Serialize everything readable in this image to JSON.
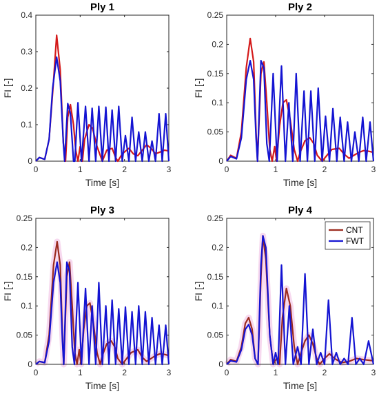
{
  "colors": {
    "CNT": "#c81414",
    "FWT": "#1414d2",
    "axis": "#262626",
    "highlight": "#f7d9ef"
  },
  "chart_data": [
    {
      "type": "line",
      "title": "Ply 1",
      "xlabel": "Time [s]",
      "ylabel": "FI [-]",
      "xlim": [
        0,
        3
      ],
      "ylim": [
        0,
        0.4
      ],
      "xticks": [
        "0",
        "1",
        "2",
        "3"
      ],
      "yticks": [
        "0",
        "0.1",
        "0.2",
        "0.3",
        "0.4"
      ],
      "highlight": false,
      "series": [
        {
          "name": "CNT",
          "color": "#d41a1a",
          "x": [
            0,
            0.08,
            0.2,
            0.3,
            0.4,
            0.47,
            0.55,
            0.62,
            0.67,
            0.72,
            0.78,
            0.85,
            0.9,
            0.95,
            1.0,
            1.05,
            1.1,
            1.15,
            1.2,
            1.28,
            1.38,
            1.5,
            1.6,
            1.72,
            1.8,
            1.85,
            1.95,
            2.1,
            2.2,
            2.3,
            2.4,
            2.5,
            2.6,
            2.7,
            2.8,
            2.9,
            3.0
          ],
          "y": [
            0,
            0.01,
            0.005,
            0.06,
            0.22,
            0.345,
            0.25,
            0.05,
            0.0,
            0.12,
            0.155,
            0.1,
            0.03,
            0.0,
            0.04,
            0.0,
            0.06,
            0.08,
            0.1,
            0.09,
            0.04,
            0.0,
            0.03,
            0.035,
            0.01,
            0.0,
            0.02,
            0.035,
            0.02,
            0.015,
            0.03,
            0.045,
            0.035,
            0.02,
            0.025,
            0.03,
            0.028
          ]
        },
        {
          "name": "FWT",
          "color": "#1414d2",
          "x": [
            0,
            0.08,
            0.2,
            0.3,
            0.38,
            0.47,
            0.55,
            0.62,
            0.65,
            0.72,
            0.78,
            0.85,
            0.88,
            0.95,
            1.03,
            1.12,
            1.2,
            1.27,
            1.35,
            1.42,
            1.5,
            1.58,
            1.65,
            1.72,
            1.8,
            1.87,
            1.95,
            2.02,
            2.1,
            2.17,
            2.25,
            2.32,
            2.4,
            2.47,
            2.55,
            2.62,
            2.7,
            2.78,
            2.85,
            2.93,
            3.0
          ],
          "y": [
            0,
            0.01,
            0.005,
            0.06,
            0.2,
            0.285,
            0.22,
            0.05,
            0.0,
            0.158,
            0.13,
            0.0,
            0.0,
            0.16,
            0.0,
            0.15,
            0.0,
            0.145,
            0.0,
            0.15,
            0.0,
            0.148,
            0.0,
            0.14,
            0.0,
            0.15,
            0.0,
            0.07,
            0.0,
            0.12,
            0.0,
            0.08,
            0.0,
            0.08,
            0.0,
            0.055,
            0.0,
            0.13,
            0.0,
            0.13,
            0.0
          ]
        }
      ]
    },
    {
      "type": "line",
      "title": "Ply 2",
      "xlabel": "Time [s]",
      "ylabel": "FI [-]",
      "xlim": [
        0,
        3
      ],
      "ylim": [
        0,
        0.25
      ],
      "xticks": [
        "0",
        "1",
        "2",
        "3"
      ],
      "yticks": [
        "0",
        "0.05",
        "0.1",
        "0.15",
        "0.2",
        "0.25"
      ],
      "highlight": false,
      "series": [
        {
          "name": "CNT",
          "color": "#d41a1a",
          "x": [
            0,
            0.08,
            0.2,
            0.3,
            0.4,
            0.48,
            0.55,
            0.6,
            0.63,
            0.7,
            0.76,
            0.82,
            0.88,
            0.93,
            0.98,
            1.02,
            1.08,
            1.15,
            1.22,
            1.3,
            1.38,
            1.45,
            1.5,
            1.6,
            1.7,
            1.78,
            1.85,
            1.95,
            2.05,
            2.15,
            2.3,
            2.4,
            2.5,
            2.6,
            2.7,
            2.8,
            2.9,
            3.0
          ],
          "y": [
            0.0,
            0.01,
            0.005,
            0.05,
            0.16,
            0.21,
            0.17,
            0.05,
            0.0,
            0.15,
            0.17,
            0.1,
            0.02,
            0.0,
            0.025,
            0.0,
            0.06,
            0.1,
            0.105,
            0.07,
            0.02,
            0.0,
            0.015,
            0.035,
            0.04,
            0.03,
            0.01,
            0.0,
            0.01,
            0.02,
            0.022,
            0.012,
            0.005,
            0.01,
            0.015,
            0.018,
            0.017,
            0.015
          ]
        },
        {
          "name": "FWT",
          "color": "#1414d2",
          "x": [
            0,
            0.08,
            0.2,
            0.3,
            0.4,
            0.48,
            0.55,
            0.6,
            0.63,
            0.7,
            0.76,
            0.82,
            0.87,
            0.95,
            1.03,
            1.12,
            1.2,
            1.27,
            1.35,
            1.42,
            1.5,
            1.58,
            1.65,
            1.72,
            1.8,
            1.87,
            1.95,
            2.02,
            2.1,
            2.17,
            2.25,
            2.32,
            2.4,
            2.47,
            2.55,
            2.62,
            2.7,
            2.78,
            2.85,
            2.93,
            3.0
          ],
          "y": [
            0,
            0.008,
            0.004,
            0.04,
            0.14,
            0.172,
            0.14,
            0.04,
            0.0,
            0.172,
            0.16,
            0.03,
            0.0,
            0.15,
            0.0,
            0.163,
            0.0,
            0.1,
            0.0,
            0.15,
            0.0,
            0.12,
            0.0,
            0.12,
            0.0,
            0.125,
            0.0,
            0.077,
            0.0,
            0.09,
            0.0,
            0.075,
            0.0,
            0.067,
            0.0,
            0.05,
            0.0,
            0.075,
            0.0,
            0.067,
            0.0
          ]
        }
      ]
    },
    {
      "type": "line",
      "title": "Ply 3",
      "xlabel": "Time [s]",
      "ylabel": "FI [-]",
      "xlim": [
        0,
        3
      ],
      "ylim": [
        0,
        0.25
      ],
      "xticks": [
        "0",
        "1",
        "2",
        "3"
      ],
      "yticks": [
        "0",
        "0.05",
        "0.1",
        "0.15",
        "0.2",
        "0.25"
      ],
      "highlight": true,
      "series": [
        {
          "name": "CNT",
          "color": "#9b2a1e",
          "x": [
            0,
            0.08,
            0.2,
            0.3,
            0.4,
            0.48,
            0.55,
            0.6,
            0.63,
            0.7,
            0.76,
            0.82,
            0.88,
            0.93,
            0.98,
            1.02,
            1.08,
            1.15,
            1.22,
            1.3,
            1.38,
            1.45,
            1.5,
            1.6,
            1.7,
            1.78,
            1.85,
            1.95,
            2.05,
            2.15,
            2.3,
            2.4,
            2.5,
            2.6,
            2.7,
            2.8,
            2.9,
            3.0
          ],
          "y": [
            0.0,
            0.005,
            0.003,
            0.05,
            0.17,
            0.21,
            0.17,
            0.05,
            0.0,
            0.15,
            0.175,
            0.1,
            0.02,
            0.0,
            0.025,
            0.0,
            0.06,
            0.1,
            0.105,
            0.07,
            0.02,
            0.0,
            0.015,
            0.035,
            0.04,
            0.03,
            0.01,
            0.0,
            0.01,
            0.02,
            0.025,
            0.012,
            0.005,
            0.01,
            0.015,
            0.018,
            0.017,
            0.015
          ]
        },
        {
          "name": "FWT",
          "color": "#1414d2",
          "x": [
            0,
            0.08,
            0.2,
            0.3,
            0.4,
            0.48,
            0.55,
            0.6,
            0.63,
            0.7,
            0.76,
            0.82,
            0.87,
            0.95,
            1.03,
            1.12,
            1.2,
            1.27,
            1.35,
            1.42,
            1.5,
            1.58,
            1.65,
            1.72,
            1.8,
            1.87,
            1.95,
            2.02,
            2.1,
            2.17,
            2.25,
            2.32,
            2.4,
            2.47,
            2.55,
            2.62,
            2.7,
            2.78,
            2.85,
            2.93,
            3.0
          ],
          "y": [
            0,
            0.005,
            0.003,
            0.04,
            0.14,
            0.175,
            0.14,
            0.04,
            0.0,
            0.175,
            0.16,
            0.03,
            0.0,
            0.14,
            0.0,
            0.13,
            0.0,
            0.1,
            0.0,
            0.14,
            0.0,
            0.1,
            0.0,
            0.11,
            0.0,
            0.095,
            0.0,
            0.098,
            0.0,
            0.09,
            0.0,
            0.1,
            0.0,
            0.09,
            0.0,
            0.08,
            0.0,
            0.067,
            0.0,
            0.067,
            0.0
          ]
        }
      ]
    },
    {
      "type": "line",
      "title": "Ply 4",
      "xlabel": "Time [s]",
      "ylabel": "FI [-]",
      "xlim": [
        0,
        3
      ],
      "ylim": [
        0,
        0.25
      ],
      "xticks": [
        "0",
        "1",
        "2",
        "3"
      ],
      "yticks": [
        "0",
        "0.05",
        "0.1",
        "0.15",
        "0.2",
        "0.25"
      ],
      "highlight": true,
      "legend": {
        "position": "top-right",
        "entries": [
          "CNT",
          "FWT"
        ]
      },
      "series": [
        {
          "name": "CNT",
          "color": "#9b2a1e",
          "x": [
            0,
            0.08,
            0.2,
            0.3,
            0.38,
            0.45,
            0.52,
            0.58,
            0.64,
            0.7,
            0.74,
            0.8,
            0.88,
            0.95,
            1.02,
            1.08,
            1.14,
            1.22,
            1.3,
            1.38,
            1.45,
            1.52,
            1.6,
            1.68,
            1.76,
            1.84,
            1.9,
            2.0,
            2.1,
            2.2,
            2.35,
            2.5,
            2.65,
            2.8,
            3.0
          ],
          "y": [
            0,
            0.008,
            0.005,
            0.03,
            0.07,
            0.08,
            0.06,
            0.01,
            0.0,
            0.15,
            0.22,
            0.18,
            0.05,
            0.0,
            0.01,
            0.0,
            0.08,
            0.13,
            0.1,
            0.03,
            0.0,
            0.02,
            0.04,
            0.05,
            0.035,
            0.01,
            0.0,
            0.01,
            0.018,
            0.01,
            0.003,
            0.005,
            0.01,
            0.008,
            0.006
          ]
        },
        {
          "name": "FWT",
          "color": "#1414d2",
          "x": [
            0,
            0.08,
            0.2,
            0.3,
            0.38,
            0.45,
            0.52,
            0.58,
            0.64,
            0.7,
            0.74,
            0.8,
            0.88,
            0.95,
            1.0,
            1.05,
            1.12,
            1.2,
            1.28,
            1.36,
            1.45,
            1.52,
            1.6,
            1.68,
            1.76,
            1.84,
            1.92,
            2.0,
            2.08,
            2.16,
            2.24,
            2.32,
            2.4,
            2.48,
            2.56,
            2.64,
            2.72,
            2.8,
            2.9,
            3.0
          ],
          "y": [
            0,
            0.006,
            0.004,
            0.025,
            0.06,
            0.068,
            0.05,
            0.01,
            0.0,
            0.17,
            0.22,
            0.2,
            0.05,
            0.0,
            0.02,
            0.0,
            0.17,
            0.0,
            0.1,
            0.0,
            0.03,
            0.0,
            0.155,
            0.0,
            0.06,
            0.0,
            0.02,
            0.0,
            0.11,
            0.0,
            0.02,
            0.0,
            0.01,
            0.0,
            0.08,
            0.0,
            0.01,
            0.0,
            0.04,
            0.0
          ]
        }
      ]
    }
  ]
}
